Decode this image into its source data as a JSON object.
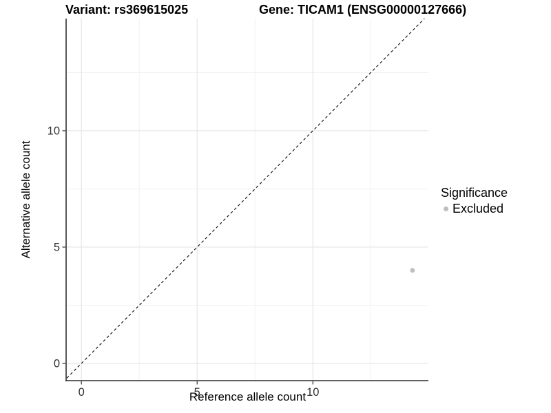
{
  "titles": {
    "variant": "Variant: rs369615025",
    "gene": "Gene: TICAM1 (ENSG00000127666)"
  },
  "legend": {
    "title": "Significance",
    "items": [
      {
        "label": "Excluded",
        "color": "#bebebe"
      }
    ]
  },
  "chart_data": {
    "type": "scatter",
    "title_left": "Variant: rs369615025",
    "title_right": "Gene: TICAM1 (ENSG00000127666)",
    "xlabel": "Reference allele count",
    "ylabel": "Alternative allele count",
    "xlim": [
      -0.63,
      14.99
    ],
    "ylim": [
      -0.74,
      14.82
    ],
    "x_ticks": [
      0,
      5,
      10
    ],
    "y_ticks": [
      0,
      5,
      10
    ],
    "x_minor_ticks": [
      2.5,
      7.5,
      12.5
    ],
    "y_minor_ticks": [
      2.5,
      7.5,
      12.5
    ],
    "grid": true,
    "legend_position": "right",
    "reference_line": {
      "type": "identity",
      "slope": 1,
      "intercept": 0,
      "style": "dashed",
      "color": "#1a1a1a"
    },
    "series": [
      {
        "name": "Excluded",
        "color": "#bebebe",
        "points": [
          {
            "x": 14.3,
            "y": 4
          }
        ]
      }
    ],
    "colors": {
      "major_grid": "#e3e3e3",
      "minor_grid": "#f0f0f0",
      "axis_line": "#2e2e2e",
      "tick_label": "#303030"
    }
  }
}
